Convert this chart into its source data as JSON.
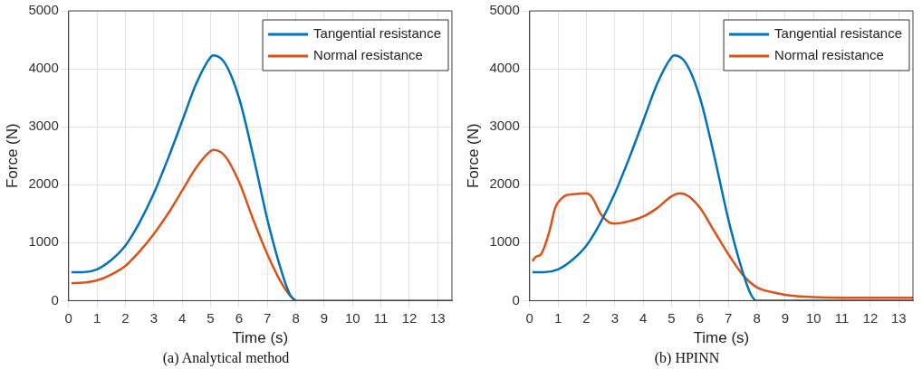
{
  "chart_data": [
    {
      "type": "line",
      "title": "(a) Analytical method",
      "xlabel": "Time (s)",
      "ylabel": "Force (N)",
      "xlim": [
        0,
        13.5
      ],
      "xticks": [
        0,
        1,
        2,
        3,
        4,
        5,
        6,
        7,
        8,
        9,
        10,
        11,
        12,
        13
      ],
      "ylim": [
        0,
        5000
      ],
      "yticks": [
        0,
        1000,
        2000,
        3000,
        4000,
        5000
      ],
      "grid": true,
      "legend": "top right",
      "marker": "none",
      "line_style": "solid",
      "series": [
        {
          "name": "Tangential resistance",
          "color": "#0072bd",
          "x": [
            0.1,
            0.5,
            1,
            1.5,
            2,
            2.5,
            3,
            3.5,
            4,
            4.5,
            5,
            5.1,
            5.5,
            6,
            6.5,
            7,
            7.5,
            7.8,
            8
          ],
          "values": [
            490,
            490,
            540,
            700,
            950,
            1350,
            1850,
            2450,
            3100,
            3750,
            4200,
            4230,
            4100,
            3500,
            2500,
            1400,
            500,
            100,
            0
          ]
        },
        {
          "name": "Normal resistance",
          "color": "#d95319",
          "x": [
            0.1,
            0.5,
            1,
            1.5,
            2,
            2.5,
            3,
            3.5,
            4,
            4.5,
            5,
            5.1,
            5.5,
            6,
            6.5,
            7,
            7.5,
            7.9,
            8,
            13.5
          ],
          "values": [
            300,
            310,
            350,
            450,
            600,
            850,
            1150,
            1500,
            1900,
            2300,
            2580,
            2600,
            2500,
            2050,
            1400,
            800,
            300,
            30,
            0,
            0
          ]
        }
      ]
    },
    {
      "type": "line",
      "title": "(b) HPINN",
      "xlabel": "Time (s)",
      "ylabel": "Force (N)",
      "xlim": [
        0,
        13.5
      ],
      "xticks": [
        0,
        1,
        2,
        3,
        4,
        5,
        6,
        7,
        8,
        9,
        10,
        11,
        12,
        13
      ],
      "ylim": [
        0,
        5000
      ],
      "yticks": [
        0,
        1000,
        2000,
        3000,
        4000,
        5000
      ],
      "grid": true,
      "legend": "top right",
      "marker": "none",
      "line_style": "solid",
      "series": [
        {
          "name": "Tangential resistance",
          "color": "#0072bd",
          "x": [
            0.1,
            0.5,
            1,
            1.5,
            2,
            2.5,
            3,
            3.5,
            4,
            4.5,
            5,
            5.1,
            5.5,
            6,
            6.5,
            7,
            7.5,
            7.8,
            8,
            13.5
          ],
          "values": [
            490,
            490,
            540,
            700,
            950,
            1350,
            1850,
            2450,
            3100,
            3750,
            4200,
            4230,
            4100,
            3500,
            2500,
            1400,
            500,
            100,
            0,
            0
          ]
        },
        {
          "name": "Normal resistance",
          "color": "#d95319",
          "x": [
            0.1,
            0.2,
            0.4,
            0.5,
            0.7,
            0.9,
            1.1,
            1.3,
            1.6,
            2,
            2.2,
            2.5,
            2.8,
            3,
            3.5,
            4,
            4.5,
            5,
            5.3,
            5.6,
            6,
            6.5,
            7,
            7.5,
            8,
            8.5,
            9,
            10,
            11,
            13.5
          ],
          "values": [
            680,
            750,
            800,
            900,
            1200,
            1600,
            1750,
            1820,
            1840,
            1850,
            1780,
            1500,
            1350,
            1330,
            1370,
            1450,
            1600,
            1800,
            1850,
            1800,
            1600,
            1200,
            800,
            450,
            230,
            150,
            100,
            60,
            50,
            50
          ]
        }
      ]
    }
  ]
}
